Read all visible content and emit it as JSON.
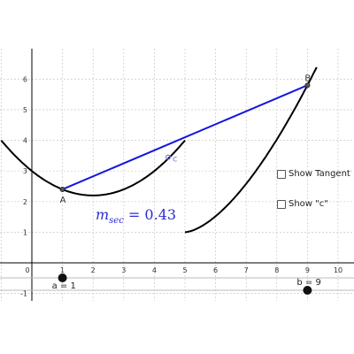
{
  "plot": {
    "x_ticks": [
      "0",
      "1",
      "2",
      "3",
      "4",
      "5",
      "6",
      "7",
      "8",
      "9",
      "10"
    ],
    "y_ticks": [
      "-1",
      "1",
      "2",
      "3",
      "4",
      "5",
      "6"
    ],
    "colors": {
      "curve": "#000000",
      "secant": "#1515e0",
      "point_c": "#7b7bd6",
      "grid": "#c8c8c8"
    }
  },
  "points": {
    "A": {
      "label": "A",
      "x": 1,
      "y": 2.4
    },
    "B": {
      "label": "B",
      "x": 9,
      "y": 5.8
    },
    "C": {
      "label": "c",
      "x": 4.45,
      "y": 3.45
    }
  },
  "secant": {
    "m_symbol": "m",
    "m_subscript": "sec",
    "equals": "=",
    "value": "0.43"
  },
  "checkboxes": [
    {
      "id": "show-tangent",
      "label": "Show Tangent",
      "checked": false
    },
    {
      "id": "show-c",
      "label": "Show \"c\"",
      "checked": false
    }
  ],
  "sliders": {
    "a": {
      "label": "a = 1",
      "value": 1,
      "min": 0,
      "max": 10
    },
    "b": {
      "label": "b = 9",
      "value": 9,
      "min": 0,
      "max": 10
    }
  }
}
